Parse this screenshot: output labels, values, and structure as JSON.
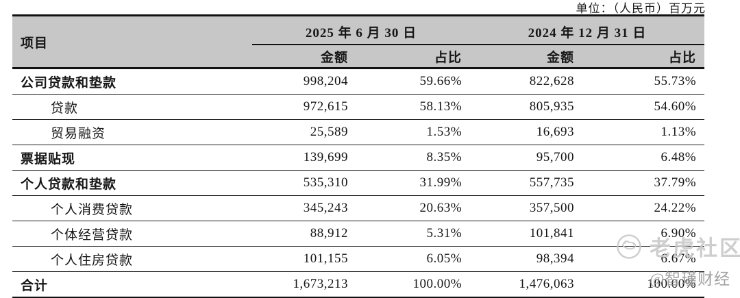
{
  "unit_label": "单位：（人民币）百万元",
  "table": {
    "item_header": "项目",
    "col_groups": [
      {
        "label": "2025 年 6 月 30 日",
        "sub": [
          "金额",
          "占比"
        ]
      },
      {
        "label": "2024 年 12 月 31 日",
        "sub": [
          "金额",
          "占比"
        ]
      }
    ],
    "rows": [
      {
        "label": "公司贷款和垫款",
        "bold": true,
        "indent": false,
        "values": [
          "998,204",
          "59.66%",
          "822,628",
          "55.73%"
        ]
      },
      {
        "label": "贷款",
        "bold": false,
        "indent": true,
        "values": [
          "972,615",
          "58.13%",
          "805,935",
          "54.60%"
        ]
      },
      {
        "label": "贸易融资",
        "bold": false,
        "indent": true,
        "values": [
          "25,589",
          "1.53%",
          "16,693",
          "1.13%"
        ]
      },
      {
        "label": "票据贴现",
        "bold": true,
        "indent": false,
        "values": [
          "139,699",
          "8.35%",
          "95,700",
          "6.48%"
        ]
      },
      {
        "label": "个人贷款和垫款",
        "bold": true,
        "indent": false,
        "values": [
          "535,310",
          "31.99%",
          "557,735",
          "37.79%"
        ]
      },
      {
        "label": "个人消费贷款",
        "bold": false,
        "indent": true,
        "values": [
          "345,243",
          "20.63%",
          "357,500",
          "24.22%"
        ]
      },
      {
        "label": "个体经营贷款",
        "bold": false,
        "indent": true,
        "values": [
          "88,912",
          "5.31%",
          "101,841",
          "6.90%"
        ]
      },
      {
        "label": "个人住房贷款",
        "bold": false,
        "indent": true,
        "values": [
          "101,155",
          "6.05%",
          "98,394",
          "6.67%"
        ]
      },
      {
        "label": "合计",
        "bold": true,
        "indent": false,
        "values": [
          "1,673,213",
          "100.00%",
          "1,476,063",
          "100.00%"
        ]
      }
    ]
  },
  "watermarks": {
    "community": "老虎社区",
    "community_icon": "tiger-logo-icon",
    "account": "@智瑾财经"
  },
  "colors": {
    "header_bg": "#c7c7c7",
    "text": "#161616",
    "rule": "#121212",
    "watermark_light": "#c8c8c8",
    "watermark_dark": "#989898"
  }
}
